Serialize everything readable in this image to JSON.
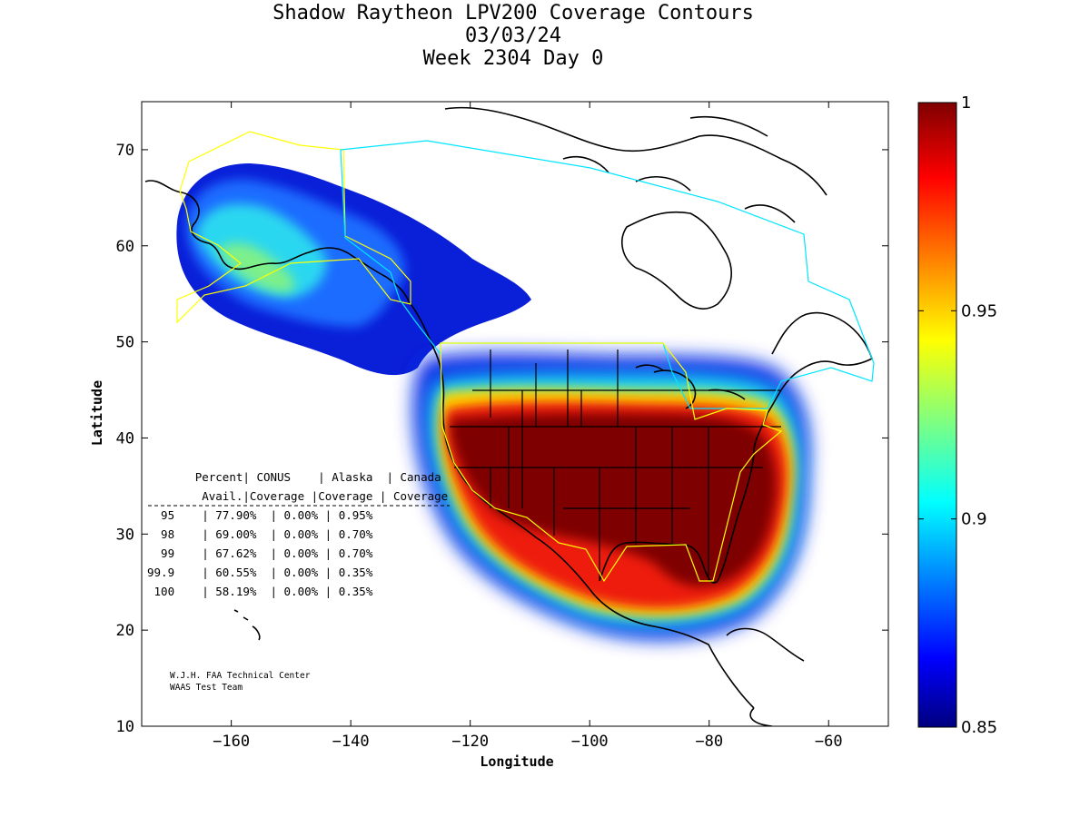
{
  "title": {
    "line1": "Shadow Raytheon LPV200 Coverage Contours",
    "line2": "03/03/24",
    "line3": "Week 2304 Day 0"
  },
  "axes": {
    "xlabel": "Longitude",
    "ylabel": "Latitude",
    "x_ticks": [
      -160,
      -140,
      -120,
      -100,
      -80,
      -60
    ],
    "y_ticks": [
      10,
      20,
      30,
      40,
      50,
      60,
      70
    ],
    "xlim": [
      -175,
      -50
    ],
    "ylim": [
      10,
      75
    ]
  },
  "colorbar": {
    "ticks": [
      "1",
      "0.95",
      "0.9",
      "0.85"
    ],
    "range": [
      0.85,
      1.0
    ],
    "colormap": "jet"
  },
  "coverage_table": {
    "header1": [
      "Percent",
      "CONUS",
      "Alaska",
      "Canada"
    ],
    "header2": [
      "Avail.",
      "Coverage",
      "Coverage",
      "Coverage"
    ],
    "rows": [
      [
        "95",
        "77.90%",
        "0.00%",
        "0.95%"
      ],
      [
        "98",
        "69.00%",
        "0.00%",
        "0.70%"
      ],
      [
        "99",
        "67.62%",
        "0.00%",
        "0.70%"
      ],
      [
        "99.9",
        "60.55%",
        "0.00%",
        "0.35%"
      ],
      [
        "100",
        "58.19%",
        "0.00%",
        "0.35%"
      ]
    ]
  },
  "credits": {
    "line1": "W.J.H. FAA Technical Center",
    "line2": "WAAS Test Team"
  },
  "colors": {
    "conus_boundary": "#ffff00",
    "canada_boundary": "#00e5ff",
    "alaska_boundary": "#ffff00"
  }
}
